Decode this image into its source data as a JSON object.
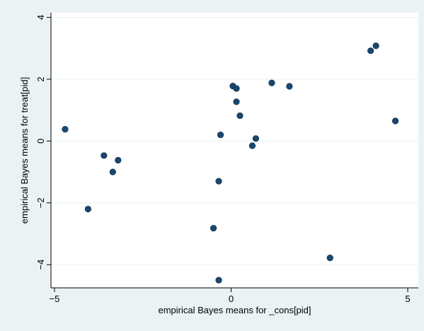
{
  "chart_data": {
    "type": "scatter",
    "title": "",
    "xlabel": "empirical Bayes means for _cons[pid]",
    "ylabel": "empirical Bayes means for treat[pid]",
    "xlim": [
      -5.1,
      5.3
    ],
    "ylim": [
      -4.75,
      4.15
    ],
    "xticks": [
      -5,
      0,
      5
    ],
    "xtick_labels": [
      "−5",
      "0",
      "5"
    ],
    "yticks": [
      -4,
      -2,
      0,
      2,
      4
    ],
    "ytick_labels": [
      "−4",
      "−2",
      "0",
      "2",
      "4"
    ],
    "grid": "horizontal",
    "legend": "none",
    "colors": {
      "background": "#eaf2f3",
      "plot_area": "#ffffff",
      "grid": "#eaf2f3",
      "marker": "#1a476f",
      "axis": "#000000"
    },
    "points": [
      {
        "x": -4.7,
        "y": 0.38
      },
      {
        "x": -4.05,
        "y": -2.2
      },
      {
        "x": -3.6,
        "y": -0.47
      },
      {
        "x": -3.35,
        "y": -1.0
      },
      {
        "x": -3.2,
        "y": -0.62
      },
      {
        "x": -0.5,
        "y": -2.82
      },
      {
        "x": -0.35,
        "y": -1.3
      },
      {
        "x": -0.3,
        "y": 0.2
      },
      {
        "x": -0.35,
        "y": -4.5
      },
      {
        "x": 0.05,
        "y": 1.78
      },
      {
        "x": 0.15,
        "y": 1.7
      },
      {
        "x": 0.15,
        "y": 1.27
      },
      {
        "x": 0.25,
        "y": 0.82
      },
      {
        "x": 0.6,
        "y": -0.15
      },
      {
        "x": 0.7,
        "y": 0.08
      },
      {
        "x": 1.15,
        "y": 1.88
      },
      {
        "x": 1.65,
        "y": 1.77
      },
      {
        "x": 2.8,
        "y": -3.78
      },
      {
        "x": 3.95,
        "y": 2.92
      },
      {
        "x": 4.1,
        "y": 3.08
      },
      {
        "x": 4.65,
        "y": 0.65
      }
    ]
  }
}
